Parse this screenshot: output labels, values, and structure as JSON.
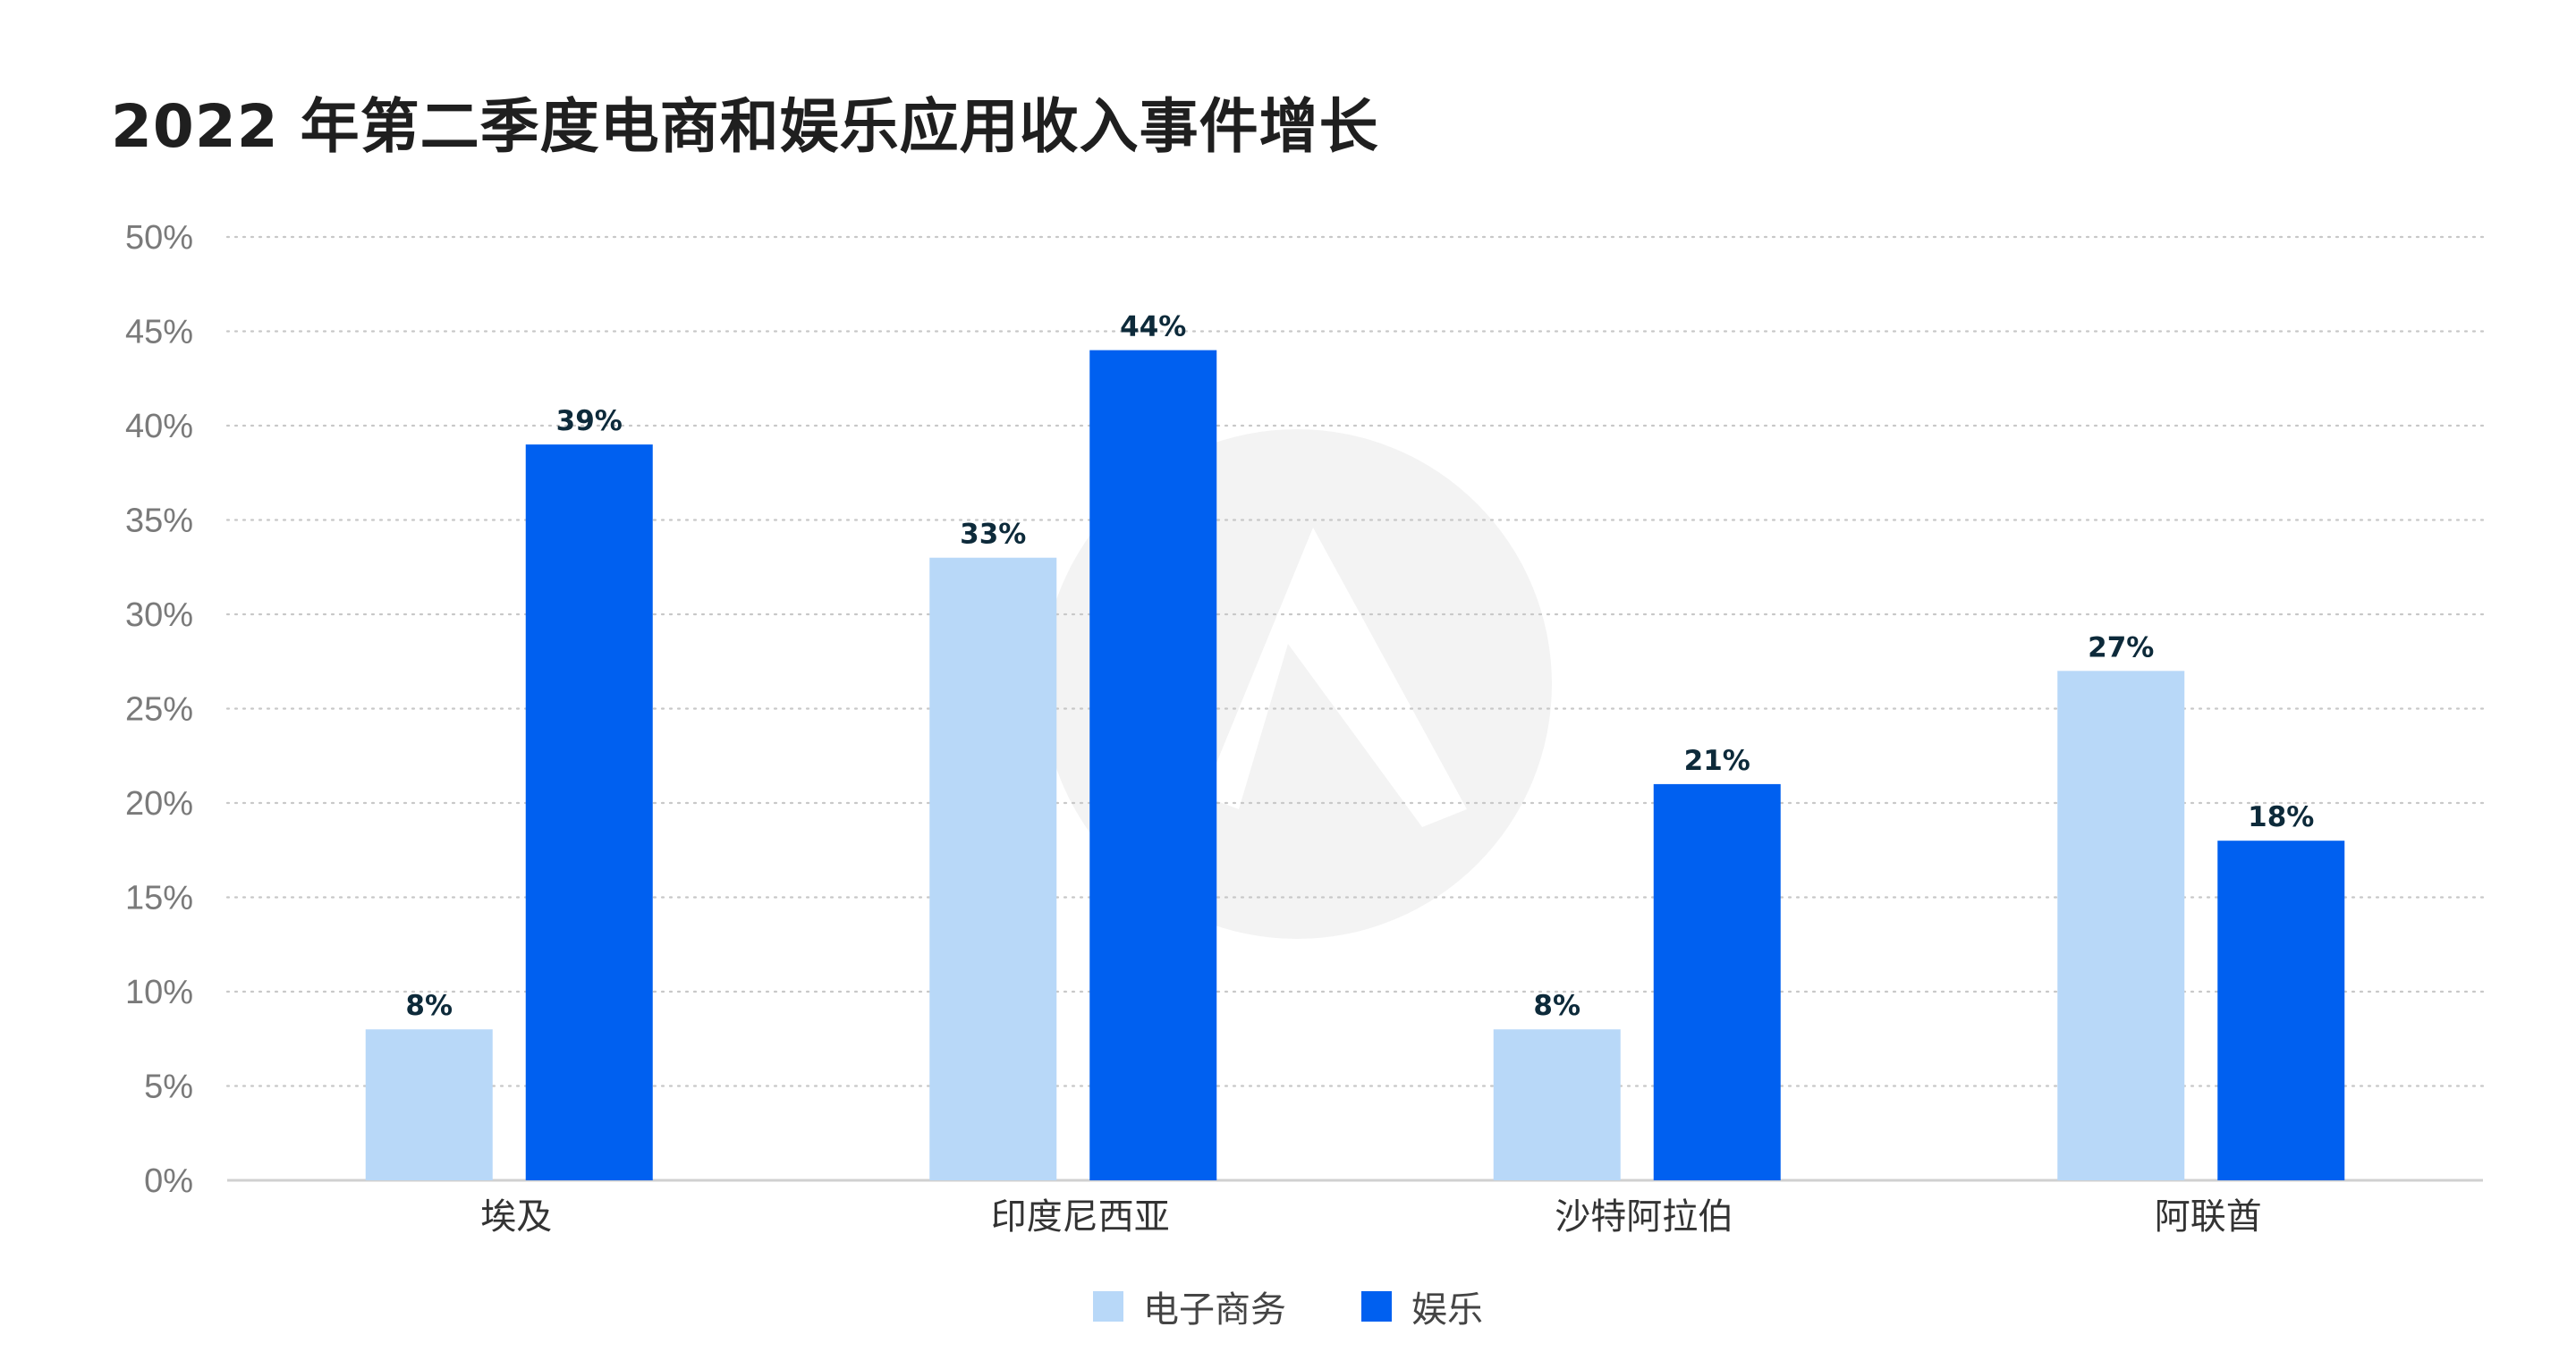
{
  "colors": {
    "ecommerce": "#b8d8f8",
    "entertainment": "#0060f0",
    "grid": "#c8c8c8",
    "axis": "#d0d0d0",
    "watermark": "#f3f3f3"
  },
  "chart_data": {
    "type": "bar",
    "title": "2022 年第二季度电商和娱乐应用收入事件增长",
    "categories": [
      "埃及",
      "印度尼西亚",
      "沙特阿拉伯",
      "阿联酋"
    ],
    "series": [
      {
        "name": "电子商务",
        "values": [
          8,
          33,
          8,
          27
        ],
        "data_labels": [
          "8%",
          "33%",
          "8%",
          "27%"
        ]
      },
      {
        "name": "娱乐",
        "values": [
          39,
          44,
          21,
          18
        ],
        "data_labels": [
          "39%",
          "44%",
          "21%",
          "18%"
        ]
      }
    ],
    "ylim": [
      0,
      50
    ],
    "y_ticks": [
      "0%",
      "5%",
      "10%",
      "15%",
      "20%",
      "25%",
      "30%",
      "35%",
      "40%",
      "45%",
      "50%"
    ],
    "grid": true,
    "legend_position": "bottom-center",
    "xlabel": "",
    "ylabel": ""
  }
}
